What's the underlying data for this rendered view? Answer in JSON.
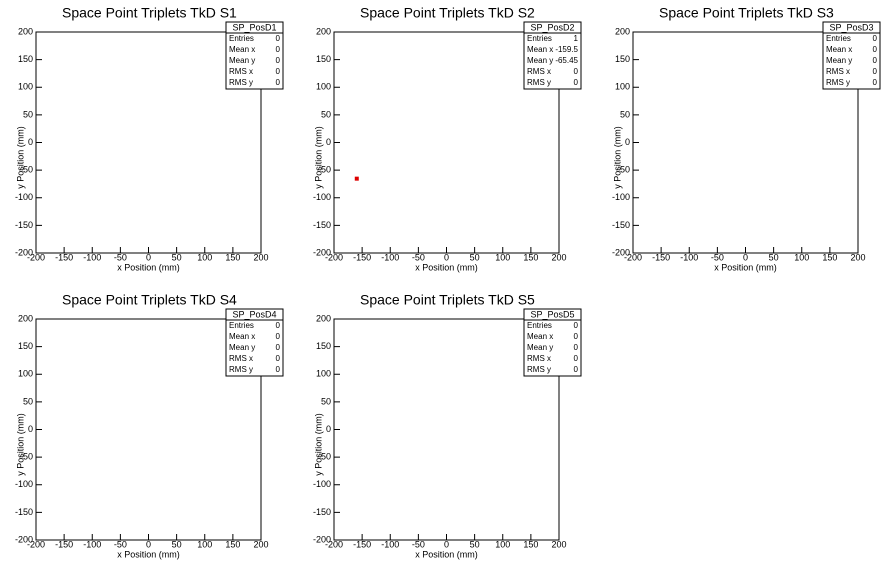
{
  "chart_data": [
    {
      "type": "scatter",
      "title": "Space Point Triplets TkD S1",
      "xlabel": "x Position (mm)",
      "ylabel": "y Position (mm)",
      "x": [],
      "y": [],
      "xlim": [
        -200,
        200
      ],
      "ylim": [
        -200,
        200
      ],
      "xticks": [
        -200,
        -150,
        -100,
        -50,
        0,
        50,
        100,
        150,
        200
      ],
      "yticks": [
        -200,
        -150,
        -100,
        -50,
        0,
        50,
        100,
        150,
        200
      ],
      "stats": {
        "name": "SP_PosD1",
        "rows": [
          {
            "label": "Entries",
            "value": 0
          },
          {
            "label": "Mean x",
            "value": 0
          },
          {
            "label": "Mean y",
            "value": 0
          },
          {
            "label": "RMS x",
            "value": 0
          },
          {
            "label": "RMS y",
            "value": 0
          }
        ]
      }
    },
    {
      "type": "scatter",
      "title": "Space Point Triplets TkD S2",
      "xlabel": "x Position (mm)",
      "ylabel": "y Position (mm)",
      "x": [
        -159.5
      ],
      "y": [
        -65.45
      ],
      "color": "#dd0000",
      "xlim": [
        -200,
        200
      ],
      "ylim": [
        -200,
        200
      ],
      "xticks": [
        -200,
        -150,
        -100,
        -50,
        0,
        50,
        100,
        150,
        200
      ],
      "yticks": [
        -200,
        -150,
        -100,
        -50,
        0,
        50,
        100,
        150,
        200
      ],
      "stats": {
        "name": "SP_PosD2",
        "rows": [
          {
            "label": "Entries",
            "value": 1
          },
          {
            "label": "Mean x",
            "value": -159.5
          },
          {
            "label": "Mean y",
            "value": -65.45
          },
          {
            "label": "RMS x",
            "value": 0
          },
          {
            "label": "RMS y",
            "value": 0
          }
        ]
      }
    },
    {
      "type": "scatter",
      "title": "Space Point Triplets TkD S3",
      "xlabel": "x Position (mm)",
      "ylabel": "y Position (mm)",
      "x": [],
      "y": [],
      "xlim": [
        -200,
        200
      ],
      "ylim": [
        -200,
        200
      ],
      "xticks": [
        -200,
        -150,
        -100,
        -50,
        0,
        50,
        100,
        150,
        200
      ],
      "yticks": [
        -200,
        -150,
        -100,
        -50,
        0,
        50,
        100,
        150,
        200
      ],
      "stats": {
        "name": "SP_PosD3",
        "rows": [
          {
            "label": "Entries",
            "value": 0
          },
          {
            "label": "Mean x",
            "value": 0
          },
          {
            "label": "Mean y",
            "value": 0
          },
          {
            "label": "RMS x",
            "value": 0
          },
          {
            "label": "RMS y",
            "value": 0
          }
        ]
      }
    },
    {
      "type": "scatter",
      "title": "Space Point Triplets TkD S4",
      "xlabel": "x Position (mm)",
      "ylabel": "y Position (mm)",
      "x": [],
      "y": [],
      "xlim": [
        -200,
        200
      ],
      "ylim": [
        -200,
        200
      ],
      "xticks": [
        -200,
        -150,
        -100,
        -50,
        0,
        50,
        100,
        150,
        200
      ],
      "yticks": [
        -200,
        -150,
        -100,
        -50,
        0,
        50,
        100,
        150,
        200
      ],
      "stats": {
        "name": "SP_PosD4",
        "rows": [
          {
            "label": "Entries",
            "value": 0
          },
          {
            "label": "Mean x",
            "value": 0
          },
          {
            "label": "Mean y",
            "value": 0
          },
          {
            "label": "RMS x",
            "value": 0
          },
          {
            "label": "RMS y",
            "value": 0
          }
        ]
      }
    },
    {
      "type": "scatter",
      "title": "Space Point Triplets TkD S5",
      "xlabel": "x Position (mm)",
      "ylabel": "y Position (mm)",
      "x": [],
      "y": [],
      "xlim": [
        -200,
        200
      ],
      "ylim": [
        -200,
        200
      ],
      "xticks": [
        -200,
        -150,
        -100,
        -50,
        0,
        50,
        100,
        150,
        200
      ],
      "yticks": [
        -200,
        -150,
        -100,
        -50,
        0,
        50,
        100,
        150,
        200
      ],
      "stats": {
        "name": "SP_PosD5",
        "rows": [
          {
            "label": "Entries",
            "value": 0
          },
          {
            "label": "Mean x",
            "value": 0
          },
          {
            "label": "Mean y",
            "value": 0
          },
          {
            "label": "RMS x",
            "value": 0
          },
          {
            "label": "RMS y",
            "value": 0
          }
        ]
      }
    }
  ]
}
